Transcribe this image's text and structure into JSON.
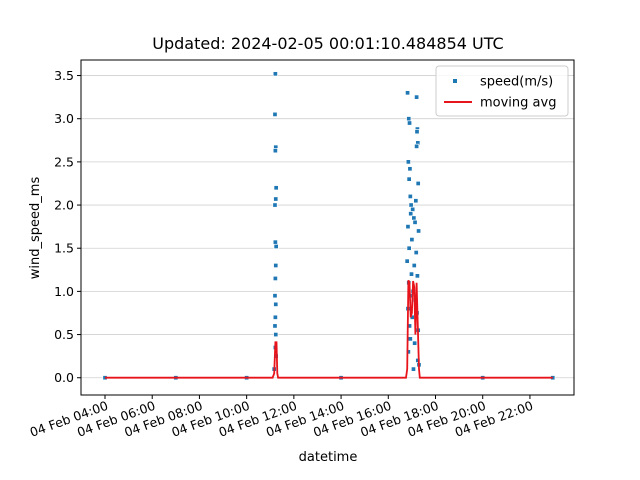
{
  "chart_data": {
    "type": "scatter",
    "title": "Updated: 2024-02-05 00:01:10.484854 UTC",
    "xlabel": "datetime",
    "ylabel": "wind_speed_ms",
    "xlim": [
      "04 Feb 02:59",
      "04 Feb 23:52"
    ],
    "xticks": [
      "04 Feb 04:00",
      "04 Feb 06:00",
      "04 Feb 08:00",
      "04 Feb 10:00",
      "04 Feb 12:00",
      "04 Feb 14:00",
      "04 Feb 16:00",
      "04 Feb 18:00",
      "04 Feb 20:00",
      "04 Feb 22:00"
    ],
    "ylim": [
      -0.2,
      3.68
    ],
    "yticks": [
      {
        "value": 0,
        "label": "0.0"
      },
      0.5,
      {
        "value": 1,
        "label": "1.0"
      },
      1.5,
      {
        "value": 2,
        "label": "2.0"
      },
      2.5,
      {
        "value": 3,
        "label": "3.0"
      },
      3.5
    ],
    "grid": true,
    "legend": "upper right",
    "series": [
      {
        "name": "speed(m/s)",
        "type": "scatter",
        "color": "#1f77b4",
        "x": [
          "04 Feb 04:00",
          "04 Feb 07:00",
          "04 Feb 10:00",
          "04 Feb 11:10",
          "04 Feb 11:13",
          "04 Feb 11:12",
          "04 Feb 11:14",
          "04 Feb 11:13",
          "04 Feb 11:15",
          "04 Feb 11:14",
          "04 Feb 11:12",
          "04 Feb 11:13",
          "04 Feb 11:15",
          "04 Feb 11:14",
          "04 Feb 11:13",
          "04 Feb 11:12",
          "04 Feb 11:14",
          "04 Feb 11:13",
          "04 Feb 11:12",
          "04 Feb 11:14",
          "04 Feb 11:13",
          "04 Feb 11:15",
          "04 Feb 14:00",
          "04 Feb 16:49",
          "04 Feb 17:12",
          "04 Feb 16:52",
          "04 Feb 16:54",
          "04 Feb 17:14",
          "04 Feb 17:13",
          "04 Feb 17:15",
          "04 Feb 17:12",
          "04 Feb 16:51",
          "04 Feb 16:55",
          "04 Feb 16:53",
          "04 Feb 17:16",
          "04 Feb 16:56",
          "04 Feb 17:10",
          "04 Feb 16:58",
          "04 Feb 17:02",
          "04 Feb 16:57",
          "04 Feb 17:05",
          "04 Feb 17:08",
          "04 Feb 16:50",
          "04 Feb 17:17",
          "04 Feb 17:00",
          "04 Feb 16:53",
          "04 Feb 17:11",
          "04 Feb 16:48",
          "04 Feb 17:06",
          "04 Feb 16:59",
          "04 Feb 17:14",
          "04 Feb 16:52",
          "04 Feb 17:03",
          "04 Feb 16:55",
          "04 Feb 17:09",
          "04 Feb 16:50",
          "04 Feb 17:13",
          "04 Feb 17:01",
          "04 Feb 16:54",
          "04 Feb 17:16",
          "04 Feb 16:56",
          "04 Feb 17:07",
          "04 Feb 16:51",
          "04 Feb 17:15",
          "04 Feb 17:04",
          "04 Feb 17:18",
          "04 Feb 20:00",
          "04 Feb 22:58"
        ],
        "values": [
          0,
          0,
          0,
          0.1,
          3.52,
          3.05,
          2.67,
          2.63,
          2.2,
          2.07,
          2.0,
          1.57,
          1.52,
          1.3,
          1.15,
          0.95,
          0.85,
          0.7,
          0.6,
          0.5,
          0.35,
          0.25,
          0,
          3.3,
          3.25,
          3.0,
          2.95,
          2.88,
          2.85,
          2.72,
          2.68,
          2.5,
          2.42,
          2.3,
          2.25,
          2.1,
          2.05,
          2.0,
          1.95,
          1.9,
          1.85,
          1.8,
          1.75,
          1.7,
          1.6,
          1.5,
          1.45,
          1.35,
          1.3,
          1.2,
          1.18,
          1.1,
          1.0,
          0.95,
          0.9,
          0.8,
          0.75,
          0.7,
          0.6,
          0.55,
          0.45,
          0.4,
          0.3,
          0.2,
          0.1,
          0.15,
          0,
          0
        ]
      },
      {
        "name": "moving avg",
        "type": "line",
        "color": "#e8141b",
        "x": [
          "04 Feb 04:00",
          "04 Feb 11:06",
          "04 Feb 11:10",
          "04 Feb 11:13",
          "04 Feb 11:16",
          "04 Feb 11:18",
          "04 Feb 11:20",
          "04 Feb 16:45",
          "04 Feb 16:48",
          "04 Feb 16:51",
          "04 Feb 16:54",
          "04 Feb 16:57",
          "04 Feb 17:00",
          "04 Feb 17:03",
          "04 Feb 17:06",
          "04 Feb 17:09",
          "04 Feb 17:12",
          "04 Feb 17:15",
          "04 Feb 17:18",
          "04 Feb 17:20",
          "04 Feb 22:58"
        ],
        "values": [
          0,
          0,
          0.05,
          0.41,
          0.41,
          0.05,
          0,
          0,
          0.1,
          1.13,
          1.1,
          0.7,
          0.75,
          1.12,
          1.05,
          0.5,
          1.1,
          0.6,
          0.1,
          0,
          0
        ]
      }
    ]
  }
}
